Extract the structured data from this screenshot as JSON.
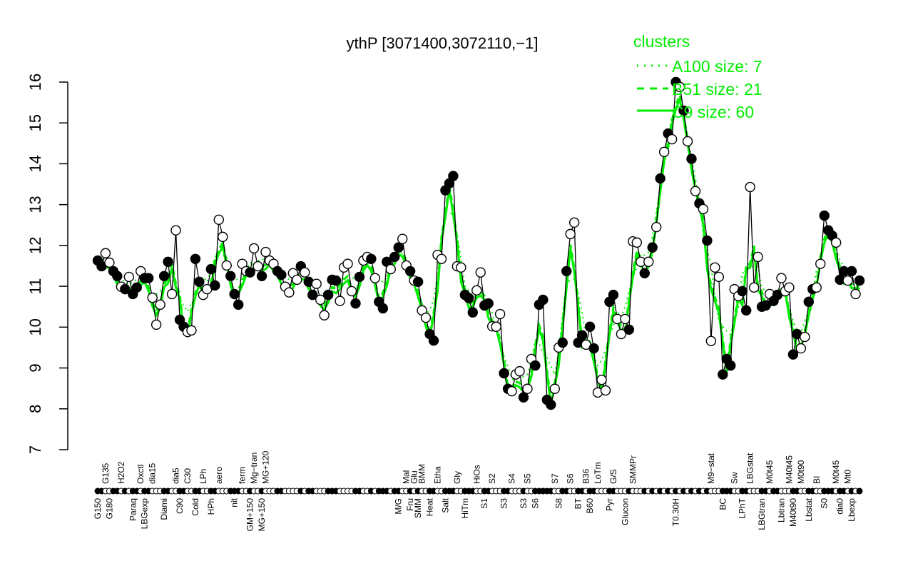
{
  "chart_data": {
    "type": "line",
    "title": "ythP [3071400,3072110,−1]",
    "xlabel": "",
    "ylabel": "",
    "ylim": [
      7,
      16
    ],
    "yticks": [
      7,
      8,
      9,
      10,
      11,
      12,
      13,
      14,
      15,
      16
    ],
    "grid": false,
    "legend": {
      "title": "clusters",
      "placement": "top-right",
      "color": "#00ee00",
      "entries": [
        {
          "label": "A100 size: 7",
          "style": "dotted"
        },
        {
          "label": "B51 size: 21",
          "style": "dashed"
        },
        {
          "label": "C9 size: 60",
          "style": "solid"
        }
      ]
    },
    "point_color": "#000000",
    "cluster_color": "#00ee00",
    "values": [
      11.63,
      11.49,
      11.81,
      11.58,
      11.37,
      11.25,
      10.99,
      10.93,
      11.23,
      10.81,
      10.97,
      11.37,
      11.2,
      11.2,
      10.72,
      10.06,
      10.55,
      11.25,
      11.6,
      10.81,
      12.37,
      10.18,
      10.01,
      9.88,
      9.92,
      11.67,
      11.11,
      10.79,
      10.93,
      11.42,
      11.02,
      12.63,
      12.21,
      11.51,
      11.25,
      10.81,
      10.55,
      11.55,
      11.37,
      11.34,
      11.93,
      11.49,
      11.25,
      11.84,
      11.63,
      11.55,
      11.37,
      11.28,
      10.99,
      10.85,
      11.32,
      11.16,
      11.49,
      11.34,
      11.11,
      10.79,
      11.06,
      10.67,
      10.29,
      10.79,
      11.16,
      11.14,
      10.64,
      11.46,
      11.55,
      10.88,
      10.58,
      11.23,
      11.63,
      11.72,
      11.67,
      11.2,
      10.62,
      10.46,
      11.6,
      11.42,
      11.72,
      11.95,
      12.16,
      11.51,
      11.37,
      11.14,
      11.11,
      10.41,
      10.23,
      9.83,
      9.67,
      11.77,
      11.67,
      13.35,
      13.52,
      13.7,
      11.49,
      11.46,
      10.79,
      10.71,
      10.36,
      10.9,
      11.34,
      10.53,
      10.58,
      10.02,
      10.01,
      10.32,
      8.87,
      8.49,
      8.43,
      8.84,
      8.92,
      8.28,
      8.49,
      9.22,
      9.06,
      10.55,
      10.67,
      8.22,
      8.1,
      8.49,
      9.5,
      9.62,
      11.37,
      12.28,
      12.56,
      9.62,
      9.8,
      9.57,
      10.01,
      9.48,
      8.4,
      8.71,
      8.45,
      10.62,
      10.79,
      10.2,
      9.83,
      10.2,
      9.94,
      12.1,
      12.07,
      11.6,
      11.32,
      11.6,
      11.95,
      12.45,
      13.64,
      14.29,
      14.74,
      14.6,
      16.0,
      15.88,
      15.3,
      14.55,
      14.12,
      13.33,
      13.03,
      12.89,
      12.12,
      9.66,
      11.46,
      11.23,
      8.84,
      9.22,
      9.06,
      10.93,
      10.76,
      10.88,
      10.41,
      13.43,
      10.97,
      11.72,
      10.5,
      10.53,
      10.81,
      10.64,
      10.79,
      11.2,
      10.88,
      10.97,
      9.33,
      9.83,
      9.48,
      9.76,
      10.62,
      10.93,
      10.97,
      11.55,
      12.73,
      12.37,
      12.24,
      12.07,
      11.16,
      11.37,
      11.14,
      11.37,
      10.81,
      11.14
    ],
    "filled": [
      1,
      1,
      0,
      0,
      1,
      1,
      0,
      1,
      0,
      1,
      1,
      0,
      1,
      1,
      0,
      0,
      0,
      1,
      1,
      0,
      0,
      1,
      1,
      0,
      0,
      1,
      1,
      0,
      0,
      1,
      1,
      0,
      0,
      0,
      1,
      1,
      1,
      0,
      0,
      1,
      0,
      0,
      1,
      0,
      0,
      0,
      1,
      1,
      0,
      0,
      0,
      0,
      1,
      0,
      1,
      1,
      0,
      0,
      0,
      1,
      1,
      1,
      0,
      0,
      0,
      0,
      1,
      1,
      0,
      0,
      1,
      0,
      1,
      1,
      1,
      0,
      1,
      1,
      0,
      0,
      1,
      0,
      1,
      0,
      0,
      1,
      1,
      0,
      0,
      1,
      1,
      1,
      0,
      0,
      1,
      1,
      1,
      0,
      0,
      1,
      1,
      0,
      0,
      0,
      1,
      1,
      0,
      0,
      0,
      1,
      0,
      0,
      1,
      1,
      1,
      1,
      1,
      0,
      0,
      1,
      1,
      0,
      0,
      1,
      1,
      0,
      1,
      1,
      0,
      0,
      0,
      1,
      1,
      0,
      0,
      0,
      1,
      0,
      0,
      0,
      1,
      0,
      1,
      0,
      1,
      0,
      1,
      0,
      1,
      0,
      1,
      0,
      1,
      0,
      1,
      0,
      1,
      0,
      0,
      0,
      1,
      1,
      1,
      0,
      0,
      1,
      1,
      0,
      0,
      0,
      1,
      1,
      0,
      1,
      1,
      0,
      0,
      0,
      1,
      1,
      0,
      0,
      1,
      1,
      0,
      0,
      1,
      1,
      1,
      0,
      1,
      1,
      0,
      1,
      0,
      1
    ],
    "category_labels": [
      {
        "i": 0,
        "label": "G150"
      },
      {
        "i": 2,
        "label": "G135"
      },
      {
        "i": 3,
        "label": "G180"
      },
      {
        "i": 6,
        "label": "H2O2"
      },
      {
        "i": 9,
        "label": "Paraq"
      },
      {
        "i": 11,
        "label": "Oxctl"
      },
      {
        "i": 12,
        "label": "LBGexp"
      },
      {
        "i": 14,
        "label": "dia15"
      },
      {
        "i": 17,
        "label": "Diami"
      },
      {
        "i": 20,
        "label": "dia5"
      },
      {
        "i": 21,
        "label": "C90"
      },
      {
        "i": 23,
        "label": "C30"
      },
      {
        "i": 25,
        "label": "Cold"
      },
      {
        "i": 27,
        "label": "LPh"
      },
      {
        "i": 29,
        "label": "HPh"
      },
      {
        "i": 31,
        "label": "aero"
      },
      {
        "i": 35,
        "label": "nit"
      },
      {
        "i": 37,
        "label": "ferm"
      },
      {
        "i": 39,
        "label": "GM+150"
      },
      {
        "i": 40,
        "label": "Mg−tran"
      },
      {
        "i": 42,
        "label": "MG+150"
      },
      {
        "i": 43,
        "label": "MG+120"
      },
      {
        "i": 77,
        "label": "M/G"
      },
      {
        "i": 79,
        "label": "Mal"
      },
      {
        "i": 80,
        "label": "Fru"
      },
      {
        "i": 81,
        "label": "Glu"
      },
      {
        "i": 82,
        "label": "SMM"
      },
      {
        "i": 83,
        "label": "BMM"
      },
      {
        "i": 85,
        "label": "Heat"
      },
      {
        "i": 87,
        "label": "Etha"
      },
      {
        "i": 89,
        "label": "Salt"
      },
      {
        "i": 92,
        "label": "Gly"
      },
      {
        "i": 94,
        "label": "HiTm"
      },
      {
        "i": 97,
        "label": "HiOs"
      },
      {
        "i": 99,
        "label": "S1"
      },
      {
        "i": 101,
        "label": "S2"
      },
      {
        "i": 104,
        "label": "S3"
      },
      {
        "i": 106,
        "label": "S4"
      },
      {
        "i": 109,
        "label": "S3"
      },
      {
        "i": 110,
        "label": "S5"
      },
      {
        "i": 112,
        "label": "S6"
      },
      {
        "i": 117,
        "label": "S7"
      },
      {
        "i": 118,
        "label": "S8"
      },
      {
        "i": 121,
        "label": "S6"
      },
      {
        "i": 123,
        "label": "BT"
      },
      {
        "i": 125,
        "label": "B36"
      },
      {
        "i": 126,
        "label": "B60"
      },
      {
        "i": 128,
        "label": "LoTm"
      },
      {
        "i": 131,
        "label": "Pyr"
      },
      {
        "i": 132,
        "label": "G/S"
      },
      {
        "i": 135,
        "label": "Glucon"
      },
      {
        "i": 137,
        "label": "SMMPr"
      },
      {
        "i": 148,
        "label": "T0.30H"
      },
      {
        "i": 157,
        "label": "M9−stat"
      },
      {
        "i": 160,
        "label": "BC"
      },
      {
        "i": 163,
        "label": "Sw"
      },
      {
        "i": 165,
        "label": "LPhT"
      },
      {
        "i": 167,
        "label": "LBGstat"
      },
      {
        "i": 170,
        "label": "LBGtran"
      },
      {
        "i": 172,
        "label": "M0t45"
      },
      {
        "i": 175,
        "label": "Lbtran"
      },
      {
        "i": 177,
        "label": "M40t45"
      },
      {
        "i": 178,
        "label": "M40t90"
      },
      {
        "i": 180,
        "label": "M0t90"
      },
      {
        "i": 182,
        "label": "Lbstat"
      },
      {
        "i": 184,
        "label": "BI"
      },
      {
        "i": 186,
        "label": "S0"
      },
      {
        "i": 189,
        "label": "M0t45"
      },
      {
        "i": 190,
        "label": "dia0"
      },
      {
        "i": 192,
        "label": "Mt0"
      },
      {
        "i": 193,
        "label": "Lbexp"
      }
    ]
  }
}
